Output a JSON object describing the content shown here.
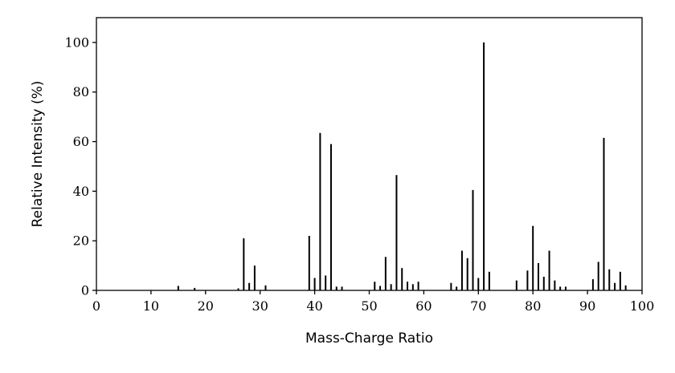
{
  "chart_data": {
    "type": "bar",
    "title": "",
    "xlabel": "Mass-Charge Ratio",
    "ylabel": "Relative Intensity (%)",
    "xlim": [
      0,
      100
    ],
    "ylim": [
      0,
      110
    ],
    "xticks": [
      0,
      10,
      20,
      30,
      40,
      50,
      60,
      70,
      80,
      90,
      100
    ],
    "yticks": [
      0,
      20,
      40,
      60,
      80,
      100
    ],
    "grid": false,
    "legend": "none",
    "bar_color": "#000000",
    "x": [
      15,
      18,
      26,
      27,
      28,
      29,
      31,
      39,
      40,
      41,
      42,
      43,
      44,
      45,
      51,
      52,
      53,
      54,
      55,
      56,
      57,
      58,
      59,
      65,
      66,
      67,
      68,
      69,
      70,
      71,
      72,
      77,
      79,
      80,
      81,
      82,
      83,
      84,
      85,
      86,
      91,
      92,
      93,
      94,
      95,
      96,
      97
    ],
    "values": [
      1.8,
      1.0,
      0.8,
      21.0,
      3.0,
      10.0,
      2.0,
      22.0,
      5.0,
      63.5,
      6.0,
      59.0,
      1.5,
      1.5,
      3.5,
      1.8,
      13.5,
      2.5,
      46.5,
      9.0,
      3.5,
      2.5,
      3.5,
      3.0,
      1.5,
      16.0,
      13.0,
      40.5,
      5.0,
      100.0,
      7.5,
      4.0,
      8.0,
      26.0,
      11.0,
      5.5,
      16.0,
      4.0,
      1.5,
      1.5,
      4.5,
      11.5,
      61.5,
      8.5,
      3.0,
      7.5,
      2.0
    ]
  }
}
